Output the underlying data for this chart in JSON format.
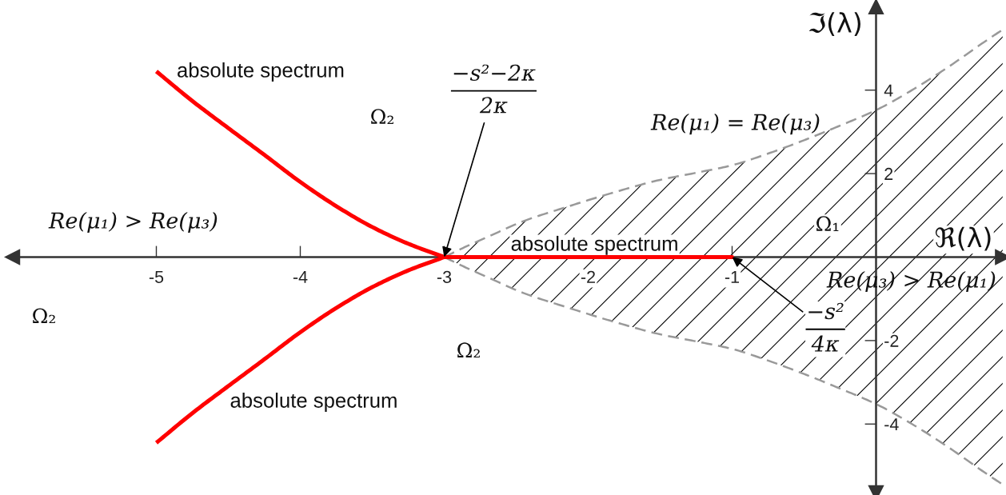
{
  "chart_data": {
    "type": "line",
    "xlabel": "ℜ(λ)",
    "ylabel": "ℑ(λ)",
    "xlim": [
      -6,
      0.88
    ],
    "ylim": [
      -5.65,
      6.0
    ],
    "xticks": [
      -5,
      -4,
      -3,
      -2,
      -1
    ],
    "yticks": [
      -4,
      -2,
      2,
      4
    ],
    "series": [
      {
        "type": "area",
        "color": "#999999",
        "line_style": "dashed",
        "x": [
          -3,
          -2.85,
          -2.7,
          -2.45,
          -2.15,
          -1.85,
          -1.5,
          -1.25,
          -1,
          -0.75,
          -0.5,
          -0.25,
          0,
          0.25,
          0.5,
          0.75,
          0.88
        ],
        "values": [
          0,
          0.25,
          0.48,
          0.86,
          1.2,
          1.52,
          1.85,
          2.02,
          2.2,
          2.48,
          2.8,
          3.15,
          3.52,
          4.0,
          4.55,
          5.15,
          5.45
        ]
      },
      {
        "type": "area",
        "color": "#999999",
        "line_style": "dashed",
        "x": [
          -3,
          -2.85,
          -2.7,
          -2.45,
          -2.15,
          -1.85,
          -1.5,
          -1.25,
          -1,
          -0.75,
          -0.5,
          -0.25,
          0,
          0.25,
          0.5,
          0.75,
          0.88
        ],
        "values": [
          0,
          -0.25,
          -0.48,
          -0.86,
          -1.2,
          -1.52,
          -1.85,
          -2.02,
          -2.2,
          -2.48,
          -2.8,
          -3.15,
          -3.52,
          -4.0,
          -4.55,
          -5.15,
          -5.45
        ]
      },
      {
        "color": "#ff0000",
        "x": [
          -5,
          -4.75,
          -4.5,
          -4.25,
          -4,
          -3.75,
          -3.5,
          -3.25,
          -3,
          -1,
          -3,
          -3.25,
          -3.5,
          -3.75,
          -4,
          -4.25,
          -4.5,
          -4.75,
          -5
        ],
        "values": [
          4.45,
          3.74,
          3.09,
          2.45,
          1.8,
          1.22,
          0.72,
          0.32,
          0,
          0,
          0,
          -0.32,
          -0.72,
          -1.22,
          -1.8,
          -2.45,
          -3.09,
          -3.74,
          -4.45
        ]
      }
    ],
    "annotations": [
      "absolute spectrum",
      "absolute spectrum",
      "absolute spectrum",
      "Ω₂",
      "Ω₂",
      "Ω₂",
      "Ω₁",
      "Re(μ₁) > Re(μ₃)",
      "Re(μ₁) = Re(μ₃)",
      "Re(μ₃) > Re(μ₁)",
      {
        "text": "−s²−2κ\n2κ",
        "x": -3,
        "y": 0
      },
      {
        "text": "−s²\n4κ",
        "x": -1,
        "y": 0
      }
    ]
  }
}
